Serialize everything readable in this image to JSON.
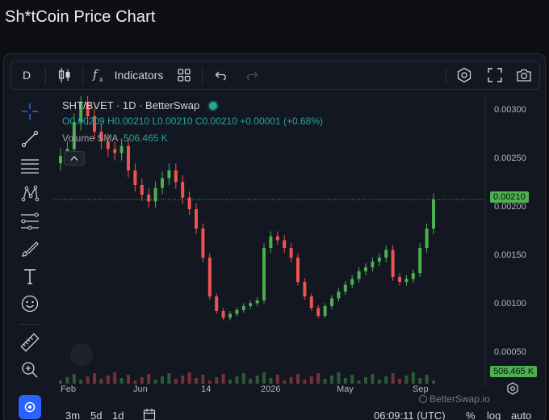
{
  "page": {
    "title": "Sh*tCoin Price Chart"
  },
  "toolbar": {
    "interval": "D",
    "indicators_label": "Indicators"
  },
  "legend": {
    "symbol": "SHT/BVET · 1D · BetterSwap",
    "open": "O0.00209",
    "high": "H0.00210",
    "low": "L0.00210",
    "close": "C0.00210",
    "change": "+0.00001 (+0.68%)",
    "volume_label": "Volume SMA",
    "volume_value": "506.465 K"
  },
  "yaxis": {
    "ticks": [
      "0.00300",
      "0.00250",
      "0.00200",
      "0.00150",
      "0.00100",
      "0.00050"
    ],
    "last_price": "0.00210",
    "volume_tag": "506.465 K"
  },
  "xaxis": {
    "ticks": [
      "Feb",
      "Jun",
      "14",
      "2026",
      "May",
      "Sep"
    ]
  },
  "bottom": {
    "ranges": [
      "3m",
      "5d",
      "1d"
    ],
    "time": "06:09:11 (UTC)",
    "pct": "%",
    "log": "log",
    "auto": "auto",
    "watermark": "BetterSwap.io"
  },
  "colors": {
    "up": "#26a69a",
    "up_green": "#4caf50",
    "down": "#ef5350",
    "accent": "#2962ff"
  },
  "chart_data": {
    "type": "candlestick",
    "series": [
      {
        "name": "SHT/BVET",
        "values": [
          0.00255,
          0.00262,
          0.0029,
          0.0031,
          0.00296,
          0.0028,
          0.0027,
          0.00262,
          0.00258,
          0.00265,
          0.0024,
          0.00225,
          0.00215,
          0.00208,
          0.00222,
          0.00232,
          0.0024,
          0.00228,
          0.00212,
          0.002,
          0.0018,
          0.0015,
          0.0011,
          0.00095,
          0.00088,
          0.00092,
          0.00096,
          0.001,
          0.00103,
          0.00106,
          0.0016,
          0.00172,
          0.00168,
          0.0016,
          0.0015,
          0.00125,
          0.0011,
          0.00098,
          0.0009,
          0.001,
          0.00108,
          0.00115,
          0.00122,
          0.00128,
          0.00136,
          0.0014,
          0.00146,
          0.0015,
          0.00158,
          0.0013,
          0.00125,
          0.00128,
          0.00134,
          0.0016,
          0.0018,
          0.0021
        ]
      }
    ],
    "ylim": [
      0.0003,
      0.0032
    ]
  }
}
